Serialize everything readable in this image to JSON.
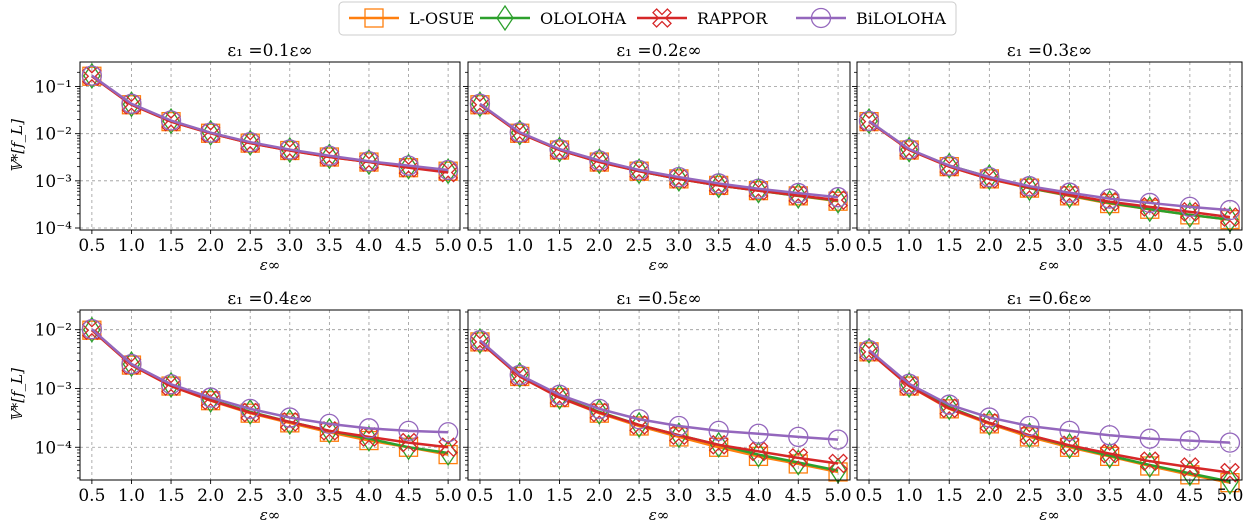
{
  "legend": [
    {
      "name": "L-OSUE",
      "color": "#ff7f0e",
      "marker": "square"
    },
    {
      "name": "OLOLOHA",
      "color": "#2ca02c",
      "marker": "diamond"
    },
    {
      "name": "RAPPOR",
      "color": "#d62728",
      "marker": "x"
    },
    {
      "name": "BiLOLOHA",
      "color": "#9467bd",
      "marker": "circle"
    }
  ],
  "chart_data": [
    {
      "type": "line",
      "title": "ε₁ =0.1ε∞",
      "xlabel": "ε∞",
      "ylabel": "𝕍*[f_L]",
      "yscale": "log",
      "ylim": [
        0.0001,
        0.3
      ],
      "grid": true,
      "yticks": [
        {
          "value": 0.1,
          "label": "10⁻¹"
        },
        {
          "value": 0.01,
          "label": "10⁻²"
        },
        {
          "value": 0.001,
          "label": "10⁻³"
        },
        {
          "value": 0.0001,
          "label": "10⁻⁴"
        }
      ],
      "x": [
        0.5,
        1.0,
        1.5,
        2.0,
        2.5,
        3.0,
        3.5,
        4.0,
        4.5,
        5.0
      ],
      "x_labels": [
        "0.5",
        "1.0",
        "1.5",
        "2.0",
        "2.5",
        "3.0",
        "3.5",
        "4.0",
        "4.5",
        "5.0"
      ],
      "series": [
        {
          "name": "L-OSUE",
          "values": [
            0.165,
            0.041,
            0.018,
            0.0102,
            0.0063,
            0.0044,
            0.0032,
            0.0025,
            0.0019,
            0.0016
          ]
        },
        {
          "name": "OLOLOHA",
          "values": [
            0.168,
            0.042,
            0.0185,
            0.0104,
            0.0064,
            0.0045,
            0.0033,
            0.0025,
            0.002,
            0.0016
          ]
        },
        {
          "name": "RAPPOR",
          "values": [
            0.165,
            0.041,
            0.018,
            0.0102,
            0.0063,
            0.0044,
            0.0032,
            0.0025,
            0.0019,
            0.0015
          ]
        },
        {
          "name": "BiLOLOHA",
          "values": [
            0.17,
            0.043,
            0.019,
            0.0105,
            0.0066,
            0.0046,
            0.0034,
            0.0026,
            0.0021,
            0.0017
          ]
        }
      ]
    },
    {
      "type": "line",
      "title": "ε₁ =0.2ε∞",
      "xlabel": "ε∞",
      "ylabel": "",
      "yscale": "log",
      "ylim": [
        0.0001,
        0.3
      ],
      "grid": true,
      "yticks": [
        {
          "value": 0.1,
          "label": ""
        },
        {
          "value": 0.01,
          "label": ""
        },
        {
          "value": 0.001,
          "label": ""
        },
        {
          "value": 0.0001,
          "label": ""
        }
      ],
      "x": [
        0.5,
        1.0,
        1.5,
        2.0,
        2.5,
        3.0,
        3.5,
        4.0,
        4.5,
        5.0
      ],
      "x_labels": [
        "0.5",
        "1.0",
        "1.5",
        "2.0",
        "2.5",
        "3.0",
        "3.5",
        "4.0",
        "4.5",
        "5.0"
      ],
      "series": [
        {
          "name": "L-OSUE",
          "values": [
            0.041,
            0.0102,
            0.0045,
            0.0025,
            0.0016,
            0.0011,
            0.0008,
            0.00062,
            0.00048,
            0.00037
          ]
        },
        {
          "name": "OLOLOHA",
          "values": [
            0.042,
            0.0105,
            0.0046,
            0.0026,
            0.0016,
            0.0011,
            0.0008,
            0.00062,
            0.00048,
            0.00038
          ]
        },
        {
          "name": "RAPPOR",
          "values": [
            0.041,
            0.0102,
            0.0045,
            0.0025,
            0.0016,
            0.0011,
            0.0008,
            0.00062,
            0.00049,
            0.00039
          ]
        },
        {
          "name": "BiLOLOHA",
          "values": [
            0.043,
            0.0107,
            0.0047,
            0.0027,
            0.0017,
            0.0012,
            0.00088,
            0.00068,
            0.00055,
            0.00045
          ]
        }
      ]
    },
    {
      "type": "line",
      "title": "ε₁ =0.3ε∞",
      "xlabel": "ε∞",
      "ylabel": "",
      "yscale": "log",
      "ylim": [
        0.0001,
        0.3
      ],
      "grid": true,
      "yticks": [
        {
          "value": 0.1,
          "label": ""
        },
        {
          "value": 0.01,
          "label": ""
        },
        {
          "value": 0.001,
          "label": ""
        },
        {
          "value": 0.0001,
          "label": ""
        }
      ],
      "x": [
        0.5,
        1.0,
        1.5,
        2.0,
        2.5,
        3.0,
        3.5,
        4.0,
        4.5,
        5.0
      ],
      "x_labels": [
        "0.5",
        "1.0",
        "1.5",
        "2.0",
        "2.5",
        "3.0",
        "3.5",
        "4.0",
        "4.5",
        "5.0"
      ],
      "series": [
        {
          "name": "L-OSUE",
          "values": [
            0.018,
            0.0045,
            0.002,
            0.0011,
            0.0007,
            0.00048,
            0.00033,
            0.00025,
            0.00019,
            0.00015
          ]
        },
        {
          "name": "OLOLOHA",
          "values": [
            0.0185,
            0.0046,
            0.0021,
            0.0012,
            0.0007,
            0.00049,
            0.00034,
            0.00025,
            0.00019,
            0.00015
          ]
        },
        {
          "name": "RAPPOR",
          "values": [
            0.018,
            0.0045,
            0.002,
            0.0011,
            0.00072,
            0.0005,
            0.00036,
            0.00028,
            0.00022,
            0.00017
          ]
        },
        {
          "name": "BiLOLOHA",
          "values": [
            0.0185,
            0.0047,
            0.0021,
            0.0012,
            0.00077,
            0.00056,
            0.00042,
            0.00034,
            0.00028,
            0.00024
          ]
        }
      ]
    },
    {
      "type": "line",
      "title": "ε₁ =0.4ε∞",
      "xlabel": "ε∞",
      "ylabel": "𝕍*[f_L]",
      "yscale": "log",
      "ylim": [
        3e-05,
        0.02
      ],
      "grid": true,
      "yticks": [
        {
          "value": 0.01,
          "label": "10⁻²"
        },
        {
          "value": 0.001,
          "label": "10⁻³"
        },
        {
          "value": 0.0001,
          "label": "10⁻⁴"
        }
      ],
      "x": [
        0.5,
        1.0,
        1.5,
        2.0,
        2.5,
        3.0,
        3.5,
        4.0,
        4.5,
        5.0
      ],
      "x_labels": [
        "0.5",
        "1.0",
        "1.5",
        "2.0",
        "2.5",
        "3.0",
        "3.5",
        "4.0",
        "4.5",
        "5.0"
      ],
      "series": [
        {
          "name": "L-OSUE",
          "values": [
            0.0098,
            0.0025,
            0.0011,
            0.00062,
            0.00038,
            0.00026,
            0.00018,
            0.00013,
            0.0001,
            7.5e-05
          ]
        },
        {
          "name": "OLOLOHA",
          "values": [
            0.01,
            0.0026,
            0.00115,
            0.00064,
            0.0004,
            0.00027,
            0.00019,
            0.00014,
            0.0001,
            8e-05
          ]
        },
        {
          "name": "RAPPOR",
          "values": [
            0.0098,
            0.0025,
            0.0011,
            0.00063,
            0.00039,
            0.00027,
            0.00019,
            0.00015,
            0.00012,
            0.0001
          ]
        },
        {
          "name": "BiLOLOHA",
          "values": [
            0.0102,
            0.0026,
            0.00118,
            0.0007,
            0.00045,
            0.00032,
            0.00025,
            0.00021,
            0.00019,
            0.00018
          ]
        }
      ]
    },
    {
      "type": "line",
      "title": "ε₁ =0.5ε∞",
      "xlabel": "ε∞",
      "ylabel": "",
      "yscale": "log",
      "ylim": [
        3e-05,
        0.02
      ],
      "grid": true,
      "yticks": [
        {
          "value": 0.01,
          "label": ""
        },
        {
          "value": 0.001,
          "label": ""
        },
        {
          "value": 0.0001,
          "label": ""
        }
      ],
      "x": [
        0.5,
        1.0,
        1.5,
        2.0,
        2.5,
        3.0,
        3.5,
        4.0,
        4.5,
        5.0
      ],
      "x_labels": [
        "0.5",
        "1.0",
        "1.5",
        "2.0",
        "2.5",
        "3.0",
        "3.5",
        "4.0",
        "4.5",
        "5.0"
      ],
      "series": [
        {
          "name": "L-OSUE",
          "values": [
            0.0062,
            0.0016,
            0.0007,
            0.00038,
            0.00023,
            0.00015,
            0.0001,
            7e-05,
            5.2e-05,
            3.8e-05
          ]
        },
        {
          "name": "OLOLOHA",
          "values": [
            0.0064,
            0.0017,
            0.00072,
            0.0004,
            0.00024,
            0.00016,
            0.00011,
            7.5e-05,
            5.5e-05,
            4e-05
          ]
        },
        {
          "name": "RAPPOR",
          "values": [
            0.0062,
            0.0016,
            0.0007,
            0.00039,
            0.00024,
            0.00016,
            0.00011,
            8.5e-05,
            6.6e-05,
            5.3e-05
          ]
        },
        {
          "name": "BiLOLOHA",
          "values": [
            0.0066,
            0.0017,
            0.00078,
            0.00045,
            0.0003,
            0.00023,
            0.00019,
            0.00017,
            0.00015,
            0.000135
          ]
        }
      ]
    },
    {
      "type": "line",
      "title": "ε₁ =0.6ε∞",
      "xlabel": "ε∞",
      "ylabel": "",
      "yscale": "log",
      "ylim": [
        3e-05,
        0.02
      ],
      "grid": true,
      "yticks": [
        {
          "value": 0.01,
          "label": ""
        },
        {
          "value": 0.001,
          "label": ""
        },
        {
          "value": 0.0001,
          "label": ""
        }
      ],
      "x": [
        0.5,
        1.0,
        1.5,
        2.0,
        2.5,
        3.0,
        3.5,
        4.0,
        4.5,
        5.0
      ],
      "x_labels": [
        "0.5",
        "1.0",
        "1.5",
        "2.0",
        "2.5",
        "3.0",
        "3.5",
        "4.0",
        "4.5",
        "5.0"
      ],
      "series": [
        {
          "name": "L-OSUE",
          "values": [
            0.0042,
            0.0011,
            0.00045,
            0.00025,
            0.00015,
            0.0001,
            7e-05,
            4.8e-05,
            3.4e-05,
            2.5e-05
          ]
        },
        {
          "name": "OLOLOHA",
          "values": [
            0.0044,
            0.00115,
            0.00048,
            0.00026,
            0.00016,
            0.000105,
            7.2e-05,
            5e-05,
            3.6e-05,
            2.6e-05
          ]
        },
        {
          "name": "RAPPOR",
          "values": [
            0.0042,
            0.0011,
            0.00046,
            0.00026,
            0.00016,
            0.000108,
            7.8e-05,
            5.8e-05,
            4.6e-05,
            3.7e-05
          ]
        },
        {
          "name": "BiLOLOHA",
          "values": [
            0.0045,
            0.0012,
            0.00053,
            0.00032,
            0.00023,
            0.00019,
            0.00016,
            0.00014,
            0.00013,
            0.00012
          ]
        }
      ]
    }
  ]
}
